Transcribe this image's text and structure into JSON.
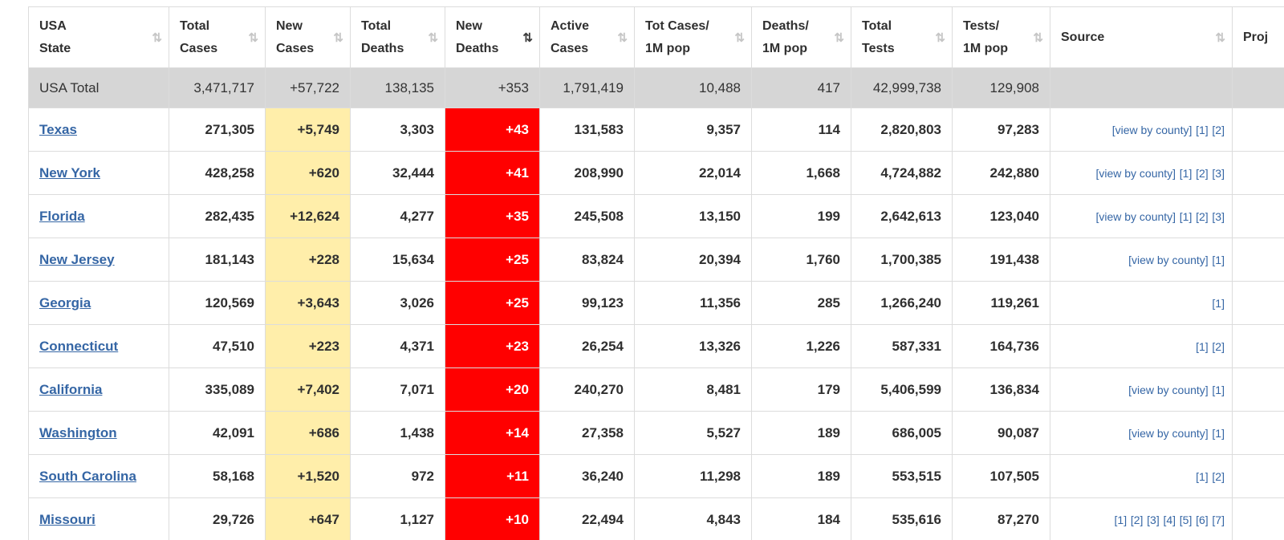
{
  "colors": {
    "link_blue": "#3566a5",
    "new_cases_bg": "#ffeeaa",
    "new_deaths_bg": "#ff0000",
    "total_row_bg": "#d6d6d6",
    "border": "#dcdcdc"
  },
  "table": {
    "sort_icon": "⇅",
    "columns": [
      {
        "id": "state",
        "line1": "USA",
        "line2": "State",
        "sorted": ""
      },
      {
        "id": "total_cases",
        "line1": "Total",
        "line2": "Cases",
        "sorted": ""
      },
      {
        "id": "new_cases",
        "line1": "New",
        "line2": "Cases",
        "sorted": ""
      },
      {
        "id": "total_deaths",
        "line1": "Total",
        "line2": "Deaths",
        "sorted": ""
      },
      {
        "id": "new_deaths",
        "line1": "New",
        "line2": "Deaths",
        "sorted": "desc"
      },
      {
        "id": "active_cases",
        "line1": "Active",
        "line2": "Cases",
        "sorted": ""
      },
      {
        "id": "cases_per_1m",
        "line1": "Tot Cases/",
        "line2": "1M pop",
        "sorted": ""
      },
      {
        "id": "deaths_per_1m",
        "line1": "Deaths/",
        "line2": "1M pop",
        "sorted": ""
      },
      {
        "id": "total_tests",
        "line1": "Total",
        "line2": "Tests",
        "sorted": ""
      },
      {
        "id": "tests_per_1m",
        "line1": "Tests/",
        "line2": "1M pop",
        "sorted": ""
      },
      {
        "id": "source",
        "line1": "Source",
        "line2": "",
        "sorted": ""
      },
      {
        "id": "proj",
        "line1": "Proj",
        "line2": "",
        "sorted": "",
        "icon": false
      }
    ],
    "rows": [
      {
        "is_total": true,
        "state": "USA Total",
        "total_cases": "3,471,717",
        "new_cases": "+57,722",
        "total_deaths": "138,135",
        "new_deaths": "+353",
        "active_cases": "1,791,419",
        "cases_per_1m": "10,488",
        "deaths_per_1m": "417",
        "total_tests": "42,999,738",
        "tests_per_1m": "129,908",
        "source": []
      },
      {
        "state": "Texas",
        "total_cases": "271,305",
        "new_cases": "+5,749",
        "total_deaths": "3,303",
        "new_deaths": "+43",
        "active_cases": "131,583",
        "cases_per_1m": "9,357",
        "deaths_per_1m": "114",
        "total_tests": "2,820,803",
        "tests_per_1m": "97,283",
        "source": [
          "[view by county]",
          "[1]",
          "[2]"
        ]
      },
      {
        "state": "New York",
        "total_cases": "428,258",
        "new_cases": "+620",
        "total_deaths": "32,444",
        "new_deaths": "+41",
        "active_cases": "208,990",
        "cases_per_1m": "22,014",
        "deaths_per_1m": "1,668",
        "total_tests": "4,724,882",
        "tests_per_1m": "242,880",
        "source": [
          "[view by county]",
          "[1]",
          "[2]",
          "[3]"
        ]
      },
      {
        "state": "Florida",
        "total_cases": "282,435",
        "new_cases": "+12,624",
        "total_deaths": "4,277",
        "new_deaths": "+35",
        "active_cases": "245,508",
        "cases_per_1m": "13,150",
        "deaths_per_1m": "199",
        "total_tests": "2,642,613",
        "tests_per_1m": "123,040",
        "source": [
          "[view by county]",
          "[1]",
          "[2]",
          "[3]"
        ]
      },
      {
        "state": "New Jersey",
        "total_cases": "181,143",
        "new_cases": "+228",
        "total_deaths": "15,634",
        "new_deaths": "+25",
        "active_cases": "83,824",
        "cases_per_1m": "20,394",
        "deaths_per_1m": "1,760",
        "total_tests": "1,700,385",
        "tests_per_1m": "191,438",
        "source": [
          "[view by county]",
          "[1]"
        ]
      },
      {
        "state": "Georgia",
        "total_cases": "120,569",
        "new_cases": "+3,643",
        "total_deaths": "3,026",
        "new_deaths": "+25",
        "active_cases": "99,123",
        "cases_per_1m": "11,356",
        "deaths_per_1m": "285",
        "total_tests": "1,266,240",
        "tests_per_1m": "119,261",
        "source": [
          "[1]"
        ]
      },
      {
        "state": "Connecticut",
        "total_cases": "47,510",
        "new_cases": "+223",
        "total_deaths": "4,371",
        "new_deaths": "+23",
        "active_cases": "26,254",
        "cases_per_1m": "13,326",
        "deaths_per_1m": "1,226",
        "total_tests": "587,331",
        "tests_per_1m": "164,736",
        "source": [
          "[1]",
          "[2]"
        ]
      },
      {
        "state": "California",
        "total_cases": "335,089",
        "new_cases": "+7,402",
        "total_deaths": "7,071",
        "new_deaths": "+20",
        "active_cases": "240,270",
        "cases_per_1m": "8,481",
        "deaths_per_1m": "179",
        "total_tests": "5,406,599",
        "tests_per_1m": "136,834",
        "source": [
          "[view by county]",
          "[1]"
        ]
      },
      {
        "state": "Washington",
        "total_cases": "42,091",
        "new_cases": "+686",
        "total_deaths": "1,438",
        "new_deaths": "+14",
        "active_cases": "27,358",
        "cases_per_1m": "5,527",
        "deaths_per_1m": "189",
        "total_tests": "686,005",
        "tests_per_1m": "90,087",
        "source": [
          "[view by county]",
          "[1]"
        ]
      },
      {
        "state": "South Carolina",
        "total_cases": "58,168",
        "new_cases": "+1,520",
        "total_deaths": "972",
        "new_deaths": "+11",
        "active_cases": "36,240",
        "cases_per_1m": "11,298",
        "deaths_per_1m": "189",
        "total_tests": "553,515",
        "tests_per_1m": "107,505",
        "source": [
          "[1]",
          "[2]"
        ]
      },
      {
        "state": "Missouri",
        "total_cases": "29,726",
        "new_cases": "+647",
        "total_deaths": "1,127",
        "new_deaths": "+10",
        "active_cases": "22,494",
        "cases_per_1m": "4,843",
        "deaths_per_1m": "184",
        "total_tests": "535,616",
        "tests_per_1m": "87,270",
        "source": [
          "[1]",
          "[2]",
          "[3]",
          "[4]",
          "[5]",
          "[6]",
          "[7]"
        ]
      }
    ]
  }
}
